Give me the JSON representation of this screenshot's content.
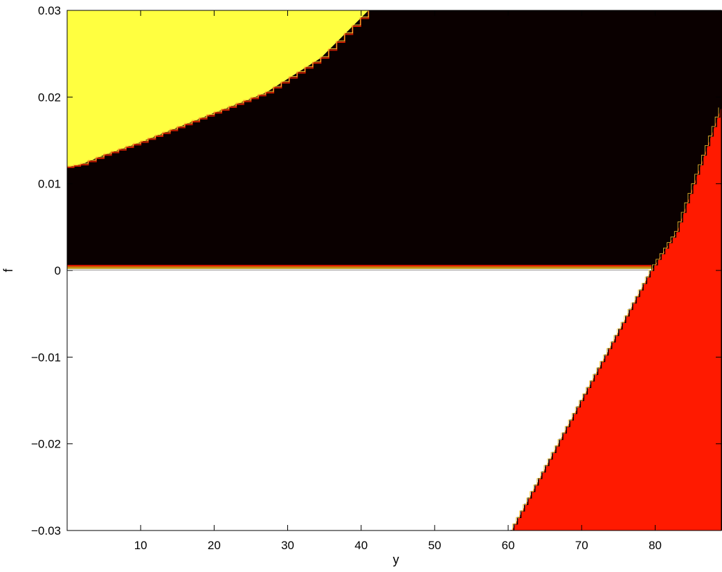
{
  "chart_data": {
    "type": "heatmap",
    "title": "",
    "xlabel": "y",
    "ylabel": "f",
    "xlim": [
      0,
      89
    ],
    "ylim": [
      -0.03,
      0.03
    ],
    "xticks": [
      10,
      20,
      30,
      40,
      50,
      60,
      70,
      80
    ],
    "yticks": [
      -0.03,
      -0.02,
      -0.01,
      0,
      0.01,
      0.02,
      0.03
    ],
    "xtick_labels": [
      "10",
      "20",
      "30",
      "40",
      "50",
      "60",
      "70",
      "80"
    ],
    "ytick_labels": [
      "−0.03",
      "−0.02",
      "−0.01",
      "0",
      "0.01",
      "0.02",
      "0.03"
    ],
    "regions": [
      {
        "name": "white",
        "color": "#ffffff",
        "polygon": [
          [
            0,
            0
          ],
          [
            79.5,
            0
          ],
          [
            60.5,
            -0.03
          ],
          [
            0,
            -0.03
          ]
        ]
      },
      {
        "name": "red",
        "color": "#ff1a00",
        "polygon": [
          [
            79.5,
            0
          ],
          [
            83.0,
            0.0045
          ],
          [
            89,
            0.0188
          ],
          [
            89,
            -0.03
          ],
          [
            60.5,
            -0.03
          ]
        ]
      },
      {
        "name": "yellow",
        "color": "#ffff40",
        "polygon": [
          [
            0,
            0.03
          ],
          [
            41,
            0.03
          ],
          [
            34.5,
            0.0245
          ],
          [
            27,
            0.0205
          ],
          [
            18,
            0.0175
          ],
          [
            10,
            0.0148
          ],
          [
            5,
            0.0133
          ],
          [
            1.8,
            0.0122
          ],
          [
            0,
            0.0119
          ]
        ]
      }
    ],
    "background_color": "#0a0000",
    "zero_line": {
      "y": 0,
      "colors": [
        "#ff1a00",
        "#ff8000",
        "#ffe040",
        "#ffffff"
      ]
    },
    "boundary_edge_color": "#ffc832"
  }
}
